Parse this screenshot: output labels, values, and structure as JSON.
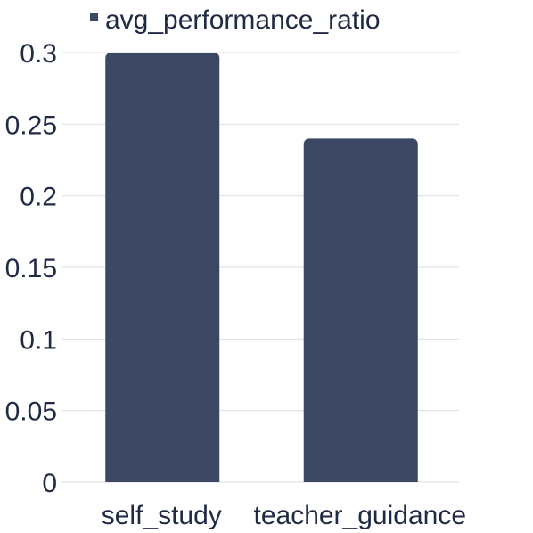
{
  "chart_data": {
    "type": "bar",
    "categories": [
      "self_study",
      "teacher_guidance"
    ],
    "series": [
      {
        "name": "avg_performance_ratio",
        "values": [
          0.3,
          0.24
        ],
        "color": "#3c4764"
      }
    ],
    "yticks": [
      "0",
      "0.05",
      "0.1",
      "0.15",
      "0.2",
      "0.25",
      "0.3"
    ],
    "ylim": [
      0,
      0.3
    ],
    "grid": true,
    "legend_position": "top"
  }
}
